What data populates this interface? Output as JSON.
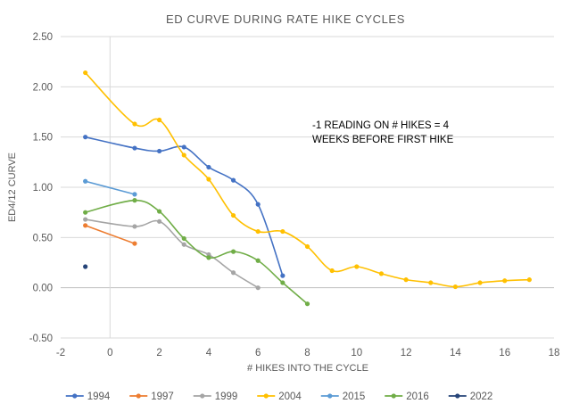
{
  "chart_data": {
    "type": "scatter",
    "title": "ED CURVE DURING RATE HIKE CYCLES",
    "xlabel": "# HIKES INTO THE CYCLE",
    "ylabel": "ED4/12 CURVE",
    "xlim": [
      -2,
      18
    ],
    "ylim": [
      -0.5,
      2.5
    ],
    "x_ticks": [
      "-2",
      "0",
      "2",
      "4",
      "6",
      "8",
      "10",
      "12",
      "14",
      "16",
      "18"
    ],
    "y_ticks": [
      "-0.50",
      "0.00",
      "0.50",
      "1.00",
      "1.50",
      "2.00",
      "2.50"
    ],
    "grid": "horizontal",
    "smoothed_lines": true,
    "legend_position": "bottom",
    "annotation": [
      "-1 READING ON # HIKES = 4",
      "WEEKS BEFORE FIRST HIKE"
    ],
    "series": [
      {
        "name": "1994",
        "color": "#4472C4",
        "x": [
          -1,
          1,
          2,
          3,
          4,
          5,
          6,
          7
        ],
        "y": [
          1.5,
          1.39,
          1.36,
          1.4,
          1.2,
          1.07,
          0.83,
          0.12
        ]
      },
      {
        "name": "1997",
        "color": "#ED7D31",
        "x": [
          -1,
          1
        ],
        "y": [
          0.62,
          0.44
        ]
      },
      {
        "name": "1999",
        "color": "#A5A5A5",
        "x": [
          -1,
          1,
          2,
          3,
          4,
          5,
          6
        ],
        "y": [
          0.68,
          0.61,
          0.66,
          0.43,
          0.33,
          0.15,
          0.0
        ]
      },
      {
        "name": "2004",
        "color": "#FFC000",
        "x": [
          -1,
          1,
          2,
          3,
          4,
          5,
          6,
          7,
          8,
          9,
          10,
          11,
          12,
          13,
          14,
          15,
          16,
          17
        ],
        "y": [
          2.14,
          1.63,
          1.67,
          1.32,
          1.08,
          0.72,
          0.56,
          0.56,
          0.41,
          0.17,
          0.21,
          0.14,
          0.08,
          0.05,
          0.01,
          0.05,
          0.07,
          0.08
        ]
      },
      {
        "name": "2015",
        "color": "#5B9BD5",
        "x": [
          -1,
          1
        ],
        "y": [
          1.06,
          0.93
        ]
      },
      {
        "name": "2016",
        "color": "#70AD47",
        "x": [
          -1,
          1,
          2,
          3,
          4,
          5,
          6,
          7,
          8
        ],
        "y": [
          0.75,
          0.87,
          0.76,
          0.49,
          0.3,
          0.36,
          0.27,
          0.05,
          -0.16
        ]
      },
      {
        "name": "2022",
        "color": "#264478",
        "x": [
          -1
        ],
        "y": [
          0.21
        ]
      }
    ]
  }
}
